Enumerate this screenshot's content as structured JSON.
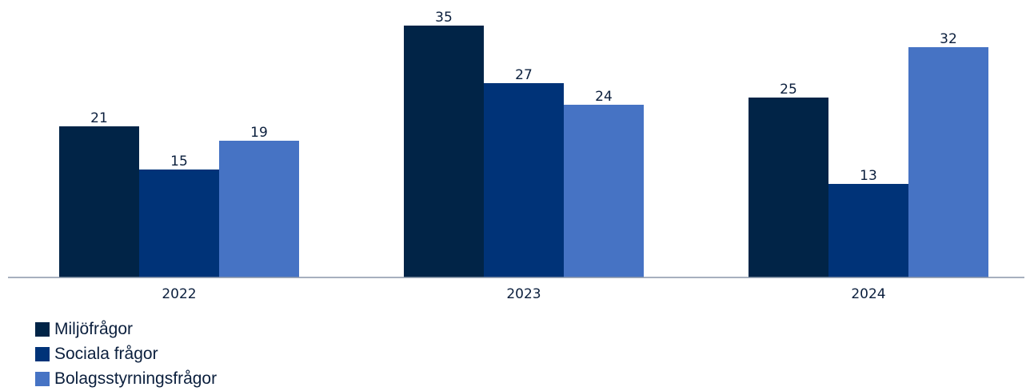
{
  "chart_data": {
    "type": "bar",
    "categories": [
      "2022",
      "2023",
      "2024"
    ],
    "series": [
      {
        "name": "Miljöfrågor",
        "values": [
          21,
          35,
          25
        ],
        "color": "#012447"
      },
      {
        "name": "Sociala frågor",
        "values": [
          15,
          27,
          13
        ],
        "color": "#003378"
      },
      {
        "name": "Bolagsstyrningsfrågor",
        "values": [
          19,
          24,
          32
        ],
        "color": "#4673C4"
      }
    ],
    "ylim": [
      0,
      35
    ],
    "grid": false,
    "legend_position": "bottom-left",
    "data_labels": true
  }
}
